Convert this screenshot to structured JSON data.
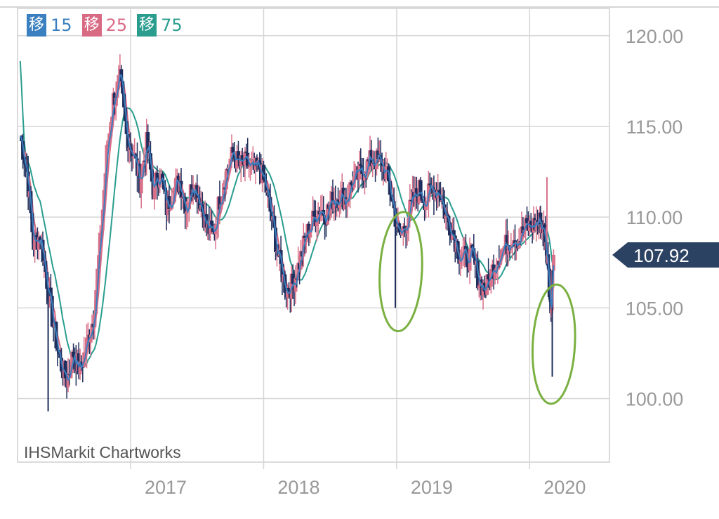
{
  "colors": {
    "ma15": "#3a7fbf",
    "ma25": "#d96a84",
    "ma75": "#2a9d8f",
    "candle": "#1f2e5c",
    "candle_up": "#d97089",
    "annotation": "#7ab041",
    "grid": "#d6d6d6",
    "axis_text": "#999999",
    "price_tag_bg": "#2c4263"
  },
  "legend": [
    {
      "glyph": "移",
      "value": "15",
      "color": "#3a7fbf"
    },
    {
      "glyph": "移",
      "value": "25",
      "color": "#d96a84"
    },
    {
      "glyph": "移",
      "value": "75",
      "color": "#2a9d8f"
    }
  ],
  "watermark": "IHSMarkit Chartworks",
  "current_price_label": "107.92",
  "chart_data": {
    "type": "candlestick",
    "title": "",
    "y_axis": {
      "position": "right",
      "range": [
        96.5,
        121.5
      ],
      "ticks": [
        120,
        115,
        110,
        105,
        100
      ],
      "tick_labels": [
        "120.00",
        "115.00",
        "110.00",
        "105.00",
        "100.00"
      ]
    },
    "x_axis": {
      "range": [
        2016.15,
        2020.6
      ],
      "ticks": [
        2017,
        2018,
        2019,
        2020
      ],
      "tick_labels": [
        "2017",
        "2018",
        "2019",
        "2020"
      ]
    },
    "grid": true,
    "current_price": 107.92,
    "close_path": [
      [
        2016.17,
        114.5
      ],
      [
        2016.22,
        112.5
      ],
      [
        2016.27,
        108.5
      ],
      [
        2016.32,
        109.0
      ],
      [
        2016.37,
        106.5
      ],
      [
        2016.42,
        104.0
      ],
      [
        2016.47,
        102.0
      ],
      [
        2016.52,
        101.0
      ],
      [
        2016.57,
        102.5
      ],
      [
        2016.62,
        101.5
      ],
      [
        2016.67,
        103.0
      ],
      [
        2016.72,
        104.5
      ],
      [
        2016.77,
        108.5
      ],
      [
        2016.82,
        113.5
      ],
      [
        2016.87,
        116.5
      ],
      [
        2016.92,
        117.5
      ],
      [
        2016.97,
        114.5
      ],
      [
        2017.02,
        113.5
      ],
      [
        2017.07,
        112.0
      ],
      [
        2017.12,
        114.0
      ],
      [
        2017.17,
        111.5
      ],
      [
        2017.22,
        112.5
      ],
      [
        2017.27,
        110.5
      ],
      [
        2017.32,
        111.5
      ],
      [
        2017.37,
        112.0
      ],
      [
        2017.42,
        110.5
      ],
      [
        2017.47,
        112.0
      ],
      [
        2017.52,
        111.0
      ],
      [
        2017.57,
        109.5
      ],
      [
        2017.62,
        109.0
      ],
      [
        2017.67,
        111.0
      ],
      [
        2017.72,
        112.5
      ],
      [
        2017.77,
        113.5
      ],
      [
        2017.82,
        112.8
      ],
      [
        2017.87,
        113.0
      ],
      [
        2017.92,
        112.5
      ],
      [
        2017.97,
        112.7
      ],
      [
        2018.02,
        111.5
      ],
      [
        2018.07,
        109.5
      ],
      [
        2018.12,
        107.5
      ],
      [
        2018.17,
        106.0
      ],
      [
        2018.22,
        106.3
      ],
      [
        2018.27,
        107.5
      ],
      [
        2018.32,
        109.0
      ],
      [
        2018.37,
        109.8
      ],
      [
        2018.42,
        110.5
      ],
      [
        2018.47,
        110.2
      ],
      [
        2018.52,
        111.0
      ],
      [
        2018.57,
        111.2
      ],
      [
        2018.62,
        111.0
      ],
      [
        2018.67,
        112.0
      ],
      [
        2018.72,
        112.3
      ],
      [
        2018.77,
        112.8
      ],
      [
        2018.82,
        113.2
      ],
      [
        2018.87,
        113.0
      ],
      [
        2018.92,
        112.5
      ],
      [
        2018.97,
        110.8
      ],
      [
        2019.02,
        108.8
      ],
      [
        2019.07,
        109.7
      ],
      [
        2019.12,
        110.8
      ],
      [
        2019.17,
        111.5
      ],
      [
        2019.22,
        110.9
      ],
      [
        2019.27,
        111.6
      ],
      [
        2019.32,
        111.5
      ],
      [
        2019.37,
        110.0
      ],
      [
        2019.42,
        109.3
      ],
      [
        2019.47,
        108.0
      ],
      [
        2019.52,
        107.7
      ],
      [
        2019.57,
        107.8
      ],
      [
        2019.62,
        106.5
      ],
      [
        2019.67,
        106.0
      ],
      [
        2019.72,
        107.1
      ],
      [
        2019.77,
        108.0
      ],
      [
        2019.82,
        108.4
      ],
      [
        2019.87,
        109.0
      ],
      [
        2019.92,
        108.8
      ],
      [
        2019.97,
        109.4
      ],
      [
        2020.02,
        109.5
      ],
      [
        2020.07,
        109.8
      ],
      [
        2020.1,
        109.5
      ],
      [
        2020.13,
        108.0
      ],
      [
        2020.16,
        105.0
      ],
      [
        2020.18,
        107.92
      ]
    ],
    "spikes": [
      {
        "x": 2016.38,
        "low": 99.3
      },
      {
        "x": 2018.99,
        "low": 105.0
      },
      {
        "x": 2020.17,
        "low": 101.2
      },
      {
        "x": 2020.13,
        "high": 112.2
      }
    ],
    "annotations": [
      {
        "type": "hand-drawn ellipse",
        "x": 2019.0,
        "y_center": 107.0
      },
      {
        "type": "hand-drawn ellipse",
        "x": 2020.15,
        "y_center": 103.0
      }
    ]
  }
}
